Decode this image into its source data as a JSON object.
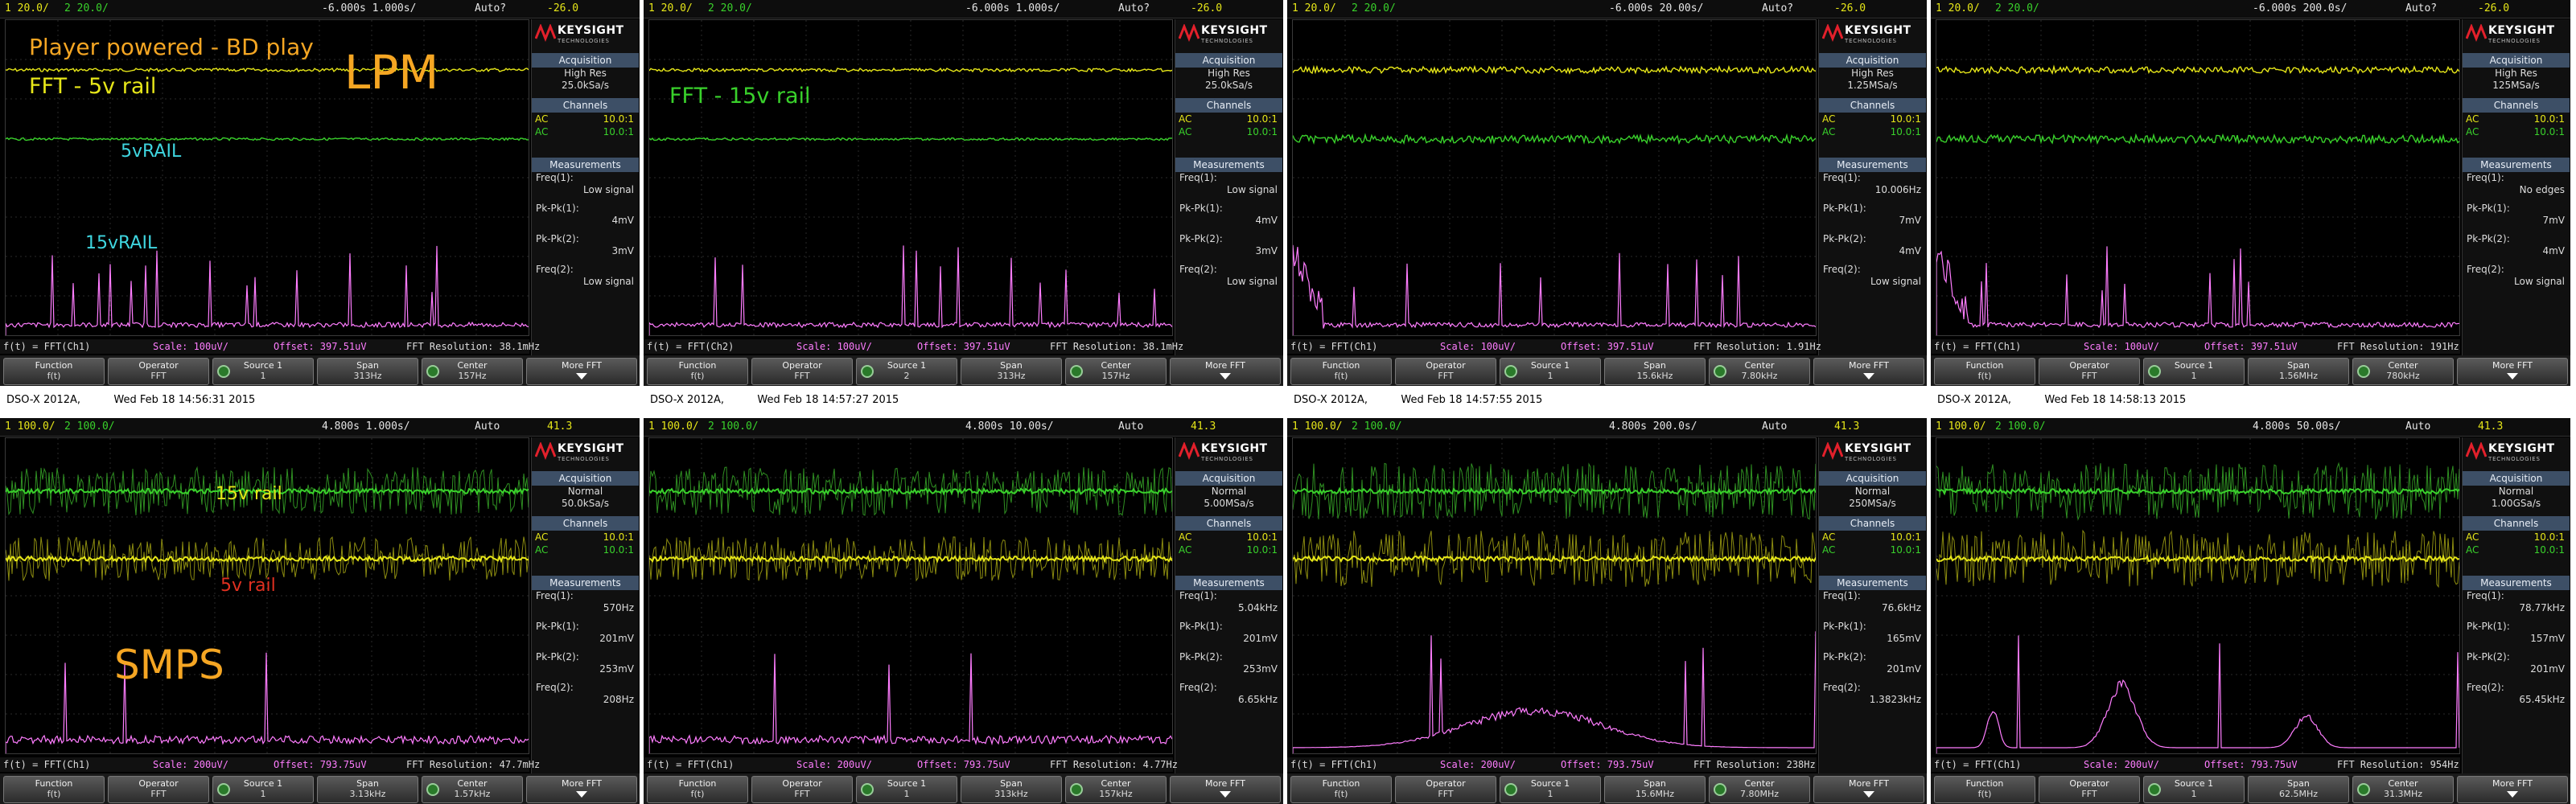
{
  "brand": {
    "name": "KEYSIGHT",
    "sub": "TECHNOLOGIES"
  },
  "colors": {
    "ch1": "#e6e619",
    "ch2": "#39d12b",
    "fft": "#ff7dff",
    "orange": "#f5a623"
  },
  "softkeys": {
    "function": "Function",
    "function_val": "f(t)",
    "operator": "Operator",
    "operator_val": "FFT",
    "source1": "Source 1",
    "span": "Span",
    "center": "Center",
    "more": "More FFT"
  },
  "labels": {
    "acquisition": "Acquisition",
    "channels": "Channels",
    "measurements": "Measurements",
    "ac": "AC",
    "ch_scale": "10.0:1"
  },
  "scopes": [
    {
      "top": {
        "ch1": "1  20.0/",
        "ch2": "2  20.0/",
        "t": "-6.000s  1.000s/",
        "trig": "Auto?",
        "tl": "-26.0"
      },
      "acq_mode": "High Res",
      "acq_rate": "25.0kSa/s",
      "m1_label": "Freq(1):",
      "m1_val": "Low signal",
      "m2_label": "Pk-Pk(1):",
      "m2_val": "4mV",
      "m3_label": "Pk-Pk(2):",
      "m3_val": "3mV",
      "m4_label": "Freq(2):",
      "m4_val": "Low signal",
      "status_fn": "f(t) = FFT(Ch1)",
      "status_scale": "Scale: 100uV/",
      "status_offset": "Offset: 397.51uV",
      "status_res": "FFT Resolution: 38.1mHz",
      "source": "1",
      "span": "313Hz",
      "center": "157Hz"
    },
    {
      "top": {
        "ch1": "1  20.0/",
        "ch2": "2  20.0/",
        "t": "-6.000s  1.000s/",
        "trig": "Auto?",
        "tl": "-26.0"
      },
      "acq_mode": "High Res",
      "acq_rate": "25.0kSa/s",
      "m1_label": "Freq(1):",
      "m1_val": "Low signal",
      "m2_label": "Pk-Pk(1):",
      "m2_val": "4mV",
      "m3_label": "Pk-Pk(2):",
      "m3_val": "3mV",
      "m4_label": "Freq(2):",
      "m4_val": "Low signal",
      "status_fn": "f(t) = FFT(Ch2)",
      "status_scale": "Scale: 100uV/",
      "status_offset": "Offset: 397.51uV",
      "status_res": "FFT Resolution: 38.1mHz",
      "source": "2",
      "span": "313Hz",
      "center": "157Hz"
    },
    {
      "top": {
        "ch1": "1  20.0/",
        "ch2": "2  20.0/",
        "t": "-6.000s  20.00s/",
        "trig": "Auto?",
        "tl": "-26.0"
      },
      "acq_mode": "High Res",
      "acq_rate": "1.25MSa/s",
      "m1_label": "Freq(1):",
      "m1_val": "10.006Hz",
      "m2_label": "Pk-Pk(1):",
      "m2_val": "7mV",
      "m3_label": "Pk-Pk(2):",
      "m3_val": "4mV",
      "m4_label": "Freq(2):",
      "m4_val": "Low signal",
      "status_fn": "f(t) = FFT(Ch1)",
      "status_scale": "Scale: 100uV/",
      "status_offset": "Offset: 397.51uV",
      "status_res": "FFT Resolution: 1.91Hz",
      "source": "1",
      "span": "15.6kHz",
      "center": "7.80kHz"
    },
    {
      "top": {
        "ch1": "1  20.0/",
        "ch2": "2  20.0/",
        "t": "-6.000s  200.0s/",
        "trig": "Auto?",
        "tl": "-26.0"
      },
      "acq_mode": "High Res",
      "acq_rate": "125MSa/s",
      "m1_label": "Freq(1):",
      "m1_val": "No edges",
      "m2_label": "Pk-Pk(1):",
      "m2_val": "7mV",
      "m3_label": "Pk-Pk(2):",
      "m3_val": "4mV",
      "m4_label": "Freq(2):",
      "m4_val": "Low signal",
      "status_fn": "f(t) = FFT(Ch1)",
      "status_scale": "Scale: 100uV/",
      "status_offset": "Offset: 397.51uV",
      "status_res": "FFT Resolution: 191Hz",
      "source": "1",
      "span": "1.56MHz",
      "center": "780kHz"
    },
    {
      "top": {
        "ch1": "1  100.0/",
        "ch2": "2  100.0/",
        "t": "4.800s  1.000s/",
        "trig": "Auto",
        "tl": "41.3"
      },
      "acq_mode": "Normal",
      "acq_rate": "50.0kSa/s",
      "m1_label": "Freq(1):",
      "m1_val": "570Hz",
      "m2_label": "Pk-Pk(1):",
      "m2_val": "201mV",
      "m3_label": "Pk-Pk(2):",
      "m3_val": "253mV",
      "m4_label": "Freq(2):",
      "m4_val": "208Hz",
      "status_fn": "f(t) = FFT(Ch1)",
      "status_scale": "Scale: 200uV/",
      "status_offset": "Offset: 793.75uV",
      "status_res": "FFT Resolution: 47.7mHz",
      "source": "1",
      "span": "3.13kHz",
      "center": "1.57kHz"
    },
    {
      "top": {
        "ch1": "1  100.0/",
        "ch2": "2  100.0/",
        "t": "4.800s  10.00s/",
        "trig": "Auto",
        "tl": "41.3"
      },
      "acq_mode": "Normal",
      "acq_rate": "5.00MSa/s",
      "m1_label": "Freq(1):",
      "m1_val": "5.04kHz",
      "m2_label": "Pk-Pk(1):",
      "m2_val": "201mV",
      "m3_label": "Pk-Pk(2):",
      "m3_val": "253mV",
      "m4_label": "Freq(2):",
      "m4_val": "6.65kHz",
      "status_fn": "f(t) = FFT(Ch1)",
      "status_scale": "Scale: 200uV/",
      "status_offset": "Offset: 793.75uV",
      "status_res": "FFT Resolution: 4.77Hz",
      "source": "1",
      "span": "313kHz",
      "center": "157kHz"
    },
    {
      "top": {
        "ch1": "1  100.0/",
        "ch2": "2  100.0/",
        "t": "4.800s  200.0s/",
        "trig": "Auto",
        "tl": "41.3"
      },
      "acq_mode": "Normal",
      "acq_rate": "250MSa/s",
      "m1_label": "Freq(1):",
      "m1_val": "76.6kHz",
      "m2_label": "Pk-Pk(1):",
      "m2_val": "165mV",
      "m3_label": "Pk-Pk(2):",
      "m3_val": "201mV",
      "m4_label": "Freq(2):",
      "m4_val": "1.3823kHz",
      "status_fn": "f(t) = FFT(Ch1)",
      "status_scale": "Scale: 200uV/",
      "status_offset": "Offset: 793.75uV",
      "status_res": "FFT Resolution: 238Hz",
      "source": "1",
      "span": "15.6MHz",
      "center": "7.80MHz"
    },
    {
      "top": {
        "ch1": "1  100.0/",
        "ch2": "2  100.0/",
        "t": "4.800s  50.00s/",
        "trig": "Auto",
        "tl": "41.3"
      },
      "acq_mode": "Normal",
      "acq_rate": "1.00GSa/s",
      "m1_label": "Freq(1):",
      "m1_val": "78.77kHz",
      "m2_label": "Pk-Pk(1):",
      "m2_val": "157mV",
      "m3_label": "Pk-Pk(2):",
      "m3_val": "201mV",
      "m4_label": "Freq(2):",
      "m4_val": "65.45kHz",
      "status_fn": "f(t) = FFT(Ch1)",
      "status_scale": "Scale: 200uV/",
      "status_offset": "Offset: 793.75uV",
      "status_res": "FFT Resolution: 954Hz",
      "source": "1",
      "span": "62.5MHz",
      "center": "31.3MHz"
    }
  ],
  "captions": [
    {
      "model": "DSO-X 2012A,",
      "date": "Wed Feb 18 14:56:31 2015"
    },
    {
      "model": "DSO-X 2012A,",
      "date": "Wed Feb 18 14:57:27 2015"
    },
    {
      "model": "DSO-X 2012A,",
      "date": "Wed Feb 18 14:57:55 2015"
    },
    {
      "model": "DSO-X 2012A,",
      "date": "Wed Feb 18 14:58:13 2015"
    }
  ],
  "annotations": {
    "player": "Player powered - BD play",
    "fft5v": "FFT - 5v rail",
    "lpm": "LPM",
    "rail5v": "5vRAIL",
    "rail15v": "15vRAIL",
    "fft15v": "FFT - 15v rail",
    "smps_15v": "15v rail",
    "smps_5v": "5v rail",
    "smps": "SMPS"
  }
}
